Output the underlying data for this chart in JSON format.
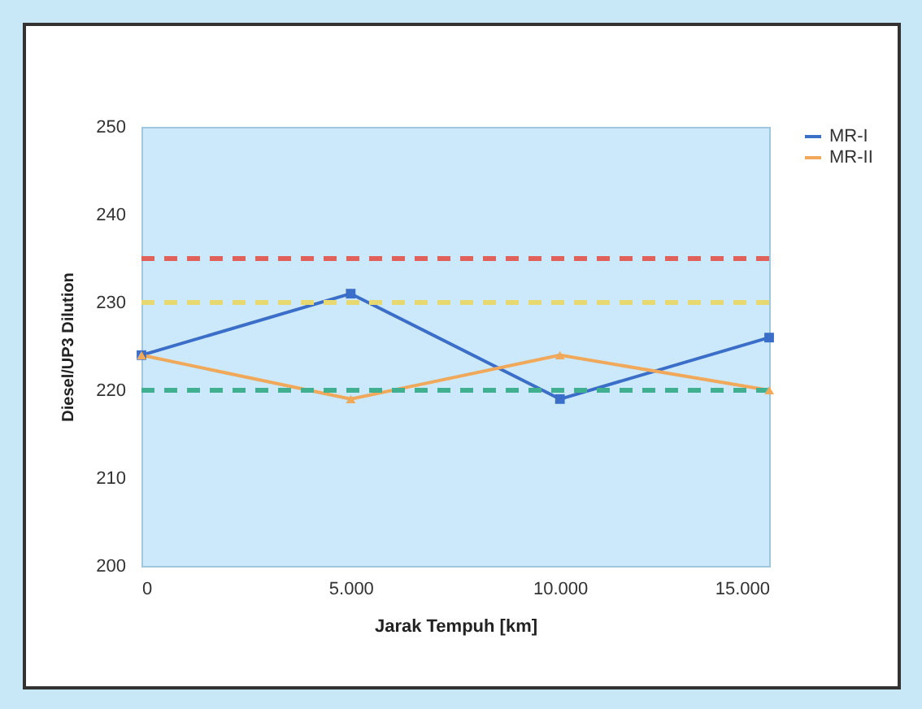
{
  "chart_data": {
    "type": "line",
    "xlabel": "Jarak Tempuh [km]",
    "ylabel": "Diesel/UP3 Dilution",
    "x": [
      0,
      5000,
      10000,
      15000
    ],
    "series": [
      {
        "name": "MR-I",
        "color": "#3a6ec8",
        "marker": "square",
        "values": [
          224,
          231,
          219,
          226
        ]
      },
      {
        "name": "MR-II",
        "color": "#f0a85a",
        "marker": "triangle",
        "values": [
          224,
          219,
          224,
          220
        ]
      }
    ],
    "xlim": [
      0,
      15000
    ],
    "xticks": [
      0,
      {
        "value": 5000,
        "label": "5.000"
      },
      {
        "value": 10000,
        "label": "10.000"
      },
      {
        "value": 15000,
        "label": "15.000"
      }
    ],
    "ylim": [
      200,
      250
    ],
    "yticks": [
      200,
      210,
      220,
      230,
      240,
      250
    ],
    "ref_lines": [
      {
        "axis": "y",
        "value": 235,
        "color": "#e0605a",
        "line_style": "dashed"
      },
      {
        "axis": "y",
        "value": 230,
        "color": "#e8d870",
        "line_style": "dashed"
      },
      {
        "axis": "y",
        "value": 220,
        "color": "#40b090",
        "line_style": "dashed"
      }
    ],
    "grid": false,
    "legend": "right",
    "line_style": "solid"
  }
}
